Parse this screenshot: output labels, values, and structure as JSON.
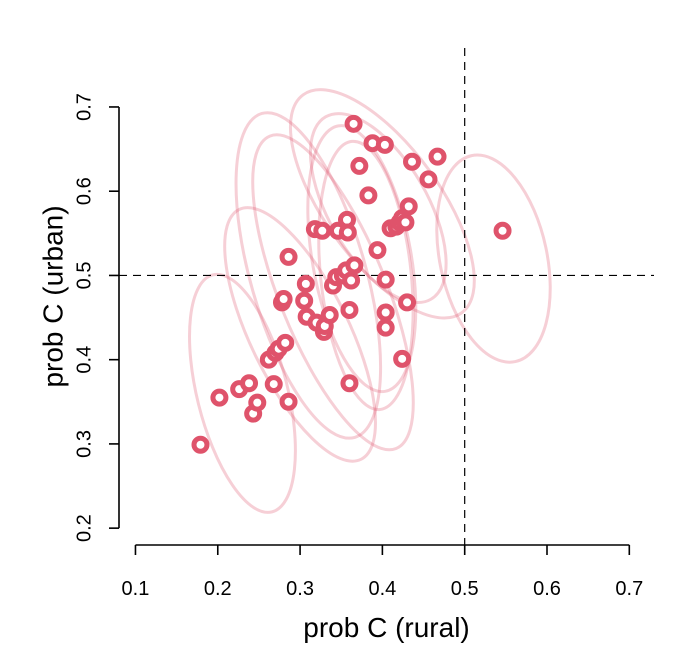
{
  "chart_data": {
    "type": "scatter",
    "xlabel": "prob C (rural)",
    "ylabel": "prob C (urban)",
    "xlim": [
      0.08,
      0.73
    ],
    "ylim": [
      0.18,
      0.77
    ],
    "xticks": [
      {
        "value": 0.1,
        "label": "0.1"
      },
      {
        "value": 0.2,
        "label": "0.2"
      },
      {
        "value": 0.3,
        "label": "0.3"
      },
      {
        "value": 0.4,
        "label": "0.4"
      },
      {
        "value": 0.5,
        "label": "0.5"
      },
      {
        "value": 0.6,
        "label": "0.6"
      },
      {
        "value": 0.7,
        "label": "0.7"
      }
    ],
    "yticks": [
      {
        "value": 0.2,
        "label": "0.2"
      },
      {
        "value": 0.3,
        "label": "0.3"
      },
      {
        "value": 0.4,
        "label": "0.4"
      },
      {
        "value": 0.5,
        "label": "0.5"
      },
      {
        "value": 0.6,
        "label": "0.6"
      },
      {
        "value": 0.7,
        "label": "0.7"
      }
    ],
    "reference_lines": {
      "x": 0.5,
      "y": 0.5,
      "style": "dashed"
    },
    "colors": {
      "points": "#df536b",
      "ellipses": "rgba(223,83,107,0.28)"
    },
    "ellipses": [
      {
        "cx": 0.23,
        "cy": 0.36,
        "rx": 0.055,
        "ry": 0.145,
        "angle": -14
      },
      {
        "cx": 0.3,
        "cy": 0.43,
        "rx": 0.06,
        "ry": 0.165,
        "angle": -26
      },
      {
        "cx": 0.31,
        "cy": 0.5,
        "rx": 0.07,
        "ry": 0.2,
        "angle": -16
      },
      {
        "cx": 0.34,
        "cy": 0.48,
        "rx": 0.065,
        "ry": 0.2,
        "angle": -22
      },
      {
        "cx": 0.375,
        "cy": 0.52,
        "rx": 0.06,
        "ry": 0.16,
        "angle": -10
      },
      {
        "cx": 0.38,
        "cy": 0.5,
        "rx": 0.055,
        "ry": 0.16,
        "angle": -6
      },
      {
        "cx": 0.395,
        "cy": 0.58,
        "rx": 0.06,
        "ry": 0.125,
        "angle": -30
      },
      {
        "cx": 0.4,
        "cy": 0.585,
        "rx": 0.07,
        "ry": 0.16,
        "angle": -36
      },
      {
        "cx": 0.535,
        "cy": 0.52,
        "rx": 0.065,
        "ry": 0.125,
        "angle": -12
      }
    ],
    "points": [
      {
        "x": 0.179,
        "y": 0.299
      },
      {
        "x": 0.202,
        "y": 0.355
      },
      {
        "x": 0.226,
        "y": 0.365
      },
      {
        "x": 0.238,
        "y": 0.372
      },
      {
        "x": 0.243,
        "y": 0.336
      },
      {
        "x": 0.248,
        "y": 0.349
      },
      {
        "x": 0.262,
        "y": 0.4
      },
      {
        "x": 0.268,
        "y": 0.371
      },
      {
        "x": 0.27,
        "y": 0.408
      },
      {
        "x": 0.274,
        "y": 0.413
      },
      {
        "x": 0.282,
        "y": 0.42
      },
      {
        "x": 0.278,
        "y": 0.468
      },
      {
        "x": 0.28,
        "y": 0.472
      },
      {
        "x": 0.286,
        "y": 0.522
      },
      {
        "x": 0.286,
        "y": 0.35
      },
      {
        "x": 0.305,
        "y": 0.47
      },
      {
        "x": 0.307,
        "y": 0.49
      },
      {
        "x": 0.308,
        "y": 0.451
      },
      {
        "x": 0.318,
        "y": 0.555
      },
      {
        "x": 0.32,
        "y": 0.444
      },
      {
        "x": 0.327,
        "y": 0.553
      },
      {
        "x": 0.329,
        "y": 0.433
      },
      {
        "x": 0.33,
        "y": 0.44
      },
      {
        "x": 0.336,
        "y": 0.453
      },
      {
        "x": 0.34,
        "y": 0.488
      },
      {
        "x": 0.344,
        "y": 0.498
      },
      {
        "x": 0.346,
        "y": 0.553
      },
      {
        "x": 0.352,
        "y": 0.5
      },
      {
        "x": 0.357,
        "y": 0.566
      },
      {
        "x": 0.358,
        "y": 0.551
      },
      {
        "x": 0.356,
        "y": 0.506
      },
      {
        "x": 0.36,
        "y": 0.459
      },
      {
        "x": 0.36,
        "y": 0.372
      },
      {
        "x": 0.362,
        "y": 0.494
      },
      {
        "x": 0.365,
        "y": 0.68
      },
      {
        "x": 0.366,
        "y": 0.512
      },
      {
        "x": 0.372,
        "y": 0.63
      },
      {
        "x": 0.383,
        "y": 0.595
      },
      {
        "x": 0.388,
        "y": 0.657
      },
      {
        "x": 0.394,
        "y": 0.53
      },
      {
        "x": 0.403,
        "y": 0.655
      },
      {
        "x": 0.404,
        "y": 0.495
      },
      {
        "x": 0.404,
        "y": 0.456
      },
      {
        "x": 0.404,
        "y": 0.438
      },
      {
        "x": 0.41,
        "y": 0.556
      },
      {
        "x": 0.417,
        "y": 0.558
      },
      {
        "x": 0.421,
        "y": 0.563
      },
      {
        "x": 0.424,
        "y": 0.401
      },
      {
        "x": 0.424,
        "y": 0.568
      },
      {
        "x": 0.428,
        "y": 0.563
      },
      {
        "x": 0.43,
        "y": 0.468
      },
      {
        "x": 0.432,
        "y": 0.582
      },
      {
        "x": 0.436,
        "y": 0.635
      },
      {
        "x": 0.456,
        "y": 0.614
      },
      {
        "x": 0.467,
        "y": 0.641
      },
      {
        "x": 0.546,
        "y": 0.553
      }
    ]
  }
}
